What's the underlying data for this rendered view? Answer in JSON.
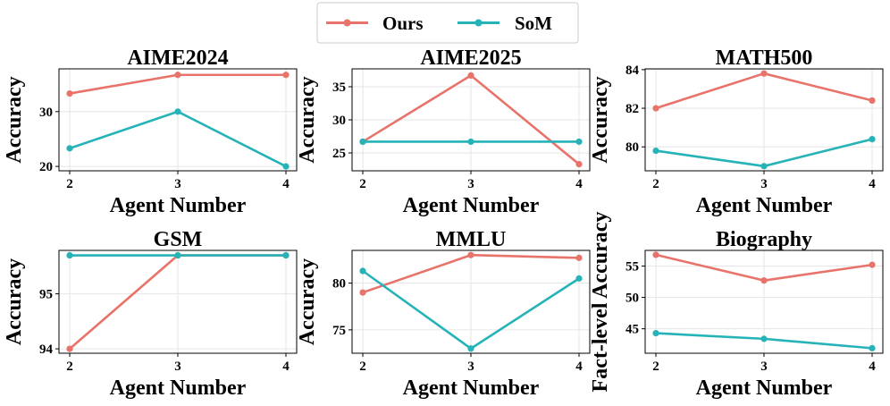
{
  "legend": {
    "entries": [
      {
        "name": "Ours",
        "color": "#e8736a"
      },
      {
        "name": "SoM",
        "color": "#26b3b8"
      }
    ]
  },
  "chart_data": [
    {
      "type": "line",
      "title": "AIME2024",
      "xlabel": "Agent Number",
      "ylabel": "Accuracy",
      "x": [
        2,
        3,
        4
      ],
      "ylim": [
        19.2,
        37.8
      ],
      "yticks": [
        20,
        30
      ],
      "series": [
        {
          "name": "Ours",
          "values": [
            33.3,
            36.7,
            36.7
          ]
        },
        {
          "name": "SoM",
          "values": [
            23.3,
            30.0,
            20.0
          ]
        }
      ],
      "grid": true
    },
    {
      "type": "line",
      "title": "AIME2025",
      "xlabel": "Agent Number",
      "ylabel": "Accuracy",
      "x": [
        2,
        3,
        4
      ],
      "ylim": [
        22.3,
        37.7
      ],
      "yticks": [
        25,
        30,
        35
      ],
      "series": [
        {
          "name": "Ours",
          "values": [
            26.7,
            36.7,
            23.3
          ]
        },
        {
          "name": "SoM",
          "values": [
            26.7,
            26.7,
            26.7
          ]
        }
      ],
      "grid": true
    },
    {
      "type": "line",
      "title": "MATH500",
      "xlabel": "Agent Number",
      "ylabel": "Accuracy",
      "x": [
        2,
        3,
        4
      ],
      "ylim": [
        78.76,
        84.04
      ],
      "yticks": [
        80,
        82,
        84
      ],
      "series": [
        {
          "name": "Ours",
          "values": [
            82.0,
            83.8,
            82.4
          ]
        },
        {
          "name": "SoM",
          "values": [
            79.8,
            79.0,
            80.4
          ]
        }
      ],
      "grid": true
    },
    {
      "type": "line",
      "title": "GSM",
      "xlabel": "Agent Number",
      "ylabel": "Accuracy",
      "x": [
        2,
        3,
        4
      ],
      "ylim": [
        93.92,
        95.79
      ],
      "yticks": [
        94,
        95
      ],
      "series": [
        {
          "name": "Ours",
          "values": [
            94.0,
            95.7,
            95.7
          ]
        },
        {
          "name": "SoM",
          "values": [
            95.7,
            95.7,
            95.7
          ]
        }
      ],
      "grid": true
    },
    {
      "type": "line",
      "title": "MMLU",
      "xlabel": "Agent Number",
      "ylabel": "Accuracy",
      "x": [
        2,
        3,
        4
      ],
      "ylim": [
        72.5,
        83.5
      ],
      "yticks": [
        75,
        80
      ],
      "series": [
        {
          "name": "Ours",
          "values": [
            79.0,
            83.0,
            82.7
          ]
        },
        {
          "name": "SoM",
          "values": [
            81.3,
            73.0,
            80.5
          ]
        }
      ],
      "grid": true
    },
    {
      "type": "line",
      "title": "Biography",
      "xlabel": "Agent Number",
      "ylabel": "Fact-level Accuracy",
      "x": [
        2,
        3,
        4
      ],
      "ylim": [
        41.1,
        57.5
      ],
      "yticks": [
        45,
        50,
        55
      ],
      "series": [
        {
          "name": "Ours",
          "values": [
            56.8,
            52.7,
            55.2
          ]
        },
        {
          "name": "SoM",
          "values": [
            44.3,
            43.4,
            41.9
          ]
        }
      ],
      "grid": true
    }
  ]
}
